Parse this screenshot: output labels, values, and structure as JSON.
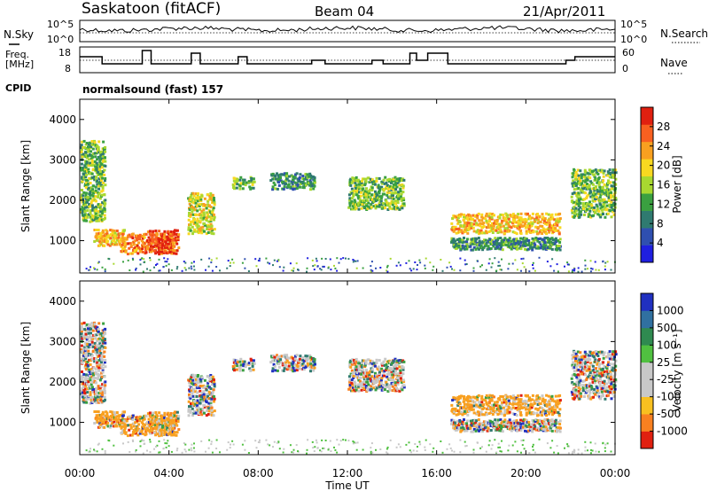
{
  "header": {
    "station": "Saskatoon (fitACF)",
    "beam": "Beam 04",
    "date": "21/Apr/2011"
  },
  "left_labels": {
    "nsky": "N.Sky",
    "freq_line1": "Freq.",
    "freq_line2": "[MHz]",
    "cpid": "CPID"
  },
  "right_labels": {
    "nsearch": "N.Search",
    "nave": "Nave"
  },
  "cpid_text": "normalsound (fast) 157",
  "noise_panel": {
    "left_ticks": [
      "10^5",
      "10^0"
    ],
    "right_ticks": [
      "10^5",
      "10^0"
    ]
  },
  "freq_panel": {
    "left_ticks": [
      "18",
      "8"
    ],
    "right_ticks": [
      "60",
      "0"
    ]
  },
  "chart_data": [
    {
      "type": "heatmap",
      "name": "power",
      "ylabel": "Slant Range [km]",
      "yticks": [
        "1000",
        "2000",
        "3000",
        "4000"
      ],
      "ylim": [
        200,
        4500
      ],
      "colorbar_label": "Power [dB]",
      "colorbar_ticks": [
        "4",
        "8",
        "12",
        "16",
        "20",
        "24",
        "28"
      ],
      "colors": [
        "#1f1fe0",
        "#2f4fb0",
        "#2f7a70",
        "#3aa040",
        "#a8d830",
        "#f8d820",
        "#f8a020",
        "#f86020",
        "#e02010"
      ],
      "echo_regions_hours_km": [
        {
          "x": [
            0.0,
            1.1
          ],
          "y": [
            1500,
            3500
          ],
          "level": 14
        },
        {
          "x": [
            0.6,
            2.0
          ],
          "y": [
            900,
            1300
          ],
          "level": 23
        },
        {
          "x": [
            1.8,
            4.2
          ],
          "y": [
            700,
            1200
          ],
          "level": 26
        },
        {
          "x": [
            3.0,
            4.4
          ],
          "y": [
            700,
            1300
          ],
          "level": 30
        },
        {
          "x": [
            4.8,
            6.0
          ],
          "y": [
            1200,
            2200
          ],
          "level": 18
        },
        {
          "x": [
            6.8,
            7.8
          ],
          "y": [
            2300,
            2600
          ],
          "level": 16
        },
        {
          "x": [
            8.5,
            10.5
          ],
          "y": [
            2300,
            2700
          ],
          "level": 12
        },
        {
          "x": [
            12.0,
            14.5
          ],
          "y": [
            1800,
            2600
          ],
          "level": 16
        },
        {
          "x": [
            16.6,
            21.5
          ],
          "y": [
            1200,
            1700
          ],
          "level": 22
        },
        {
          "x": [
            16.6,
            21.5
          ],
          "y": [
            800,
            1100
          ],
          "level": 12
        },
        {
          "x": [
            22.0,
            24.0
          ],
          "y": [
            1600,
            2800
          ],
          "level": 14
        }
      ]
    },
    {
      "type": "heatmap",
      "name": "velocity",
      "ylabel": "Slant Range [km]",
      "yticks": [
        "1000",
        "2000",
        "3000",
        "4000"
      ],
      "ylim": [
        200,
        4500
      ],
      "colorbar_label": "Velocity [m s⁻¹]",
      "colorbar_ticks": [
        "1000",
        "500",
        "100",
        "25",
        "-25",
        "-100",
        "-500",
        "-1000"
      ],
      "colors": [
        "#2030c0",
        "#3070a0",
        "#2f8a50",
        "#50c040",
        "#c8c8c8",
        "#c8c8c8",
        "#f8c020",
        "#f88020",
        "#e02010"
      ],
      "xlabel": "Time UT",
      "xticks": [
        "00:00",
        "04:00",
        "08:00",
        "12:00",
        "16:00",
        "20:00",
        "00:00"
      ],
      "xlim_hours": [
        0,
        24
      ]
    }
  ]
}
